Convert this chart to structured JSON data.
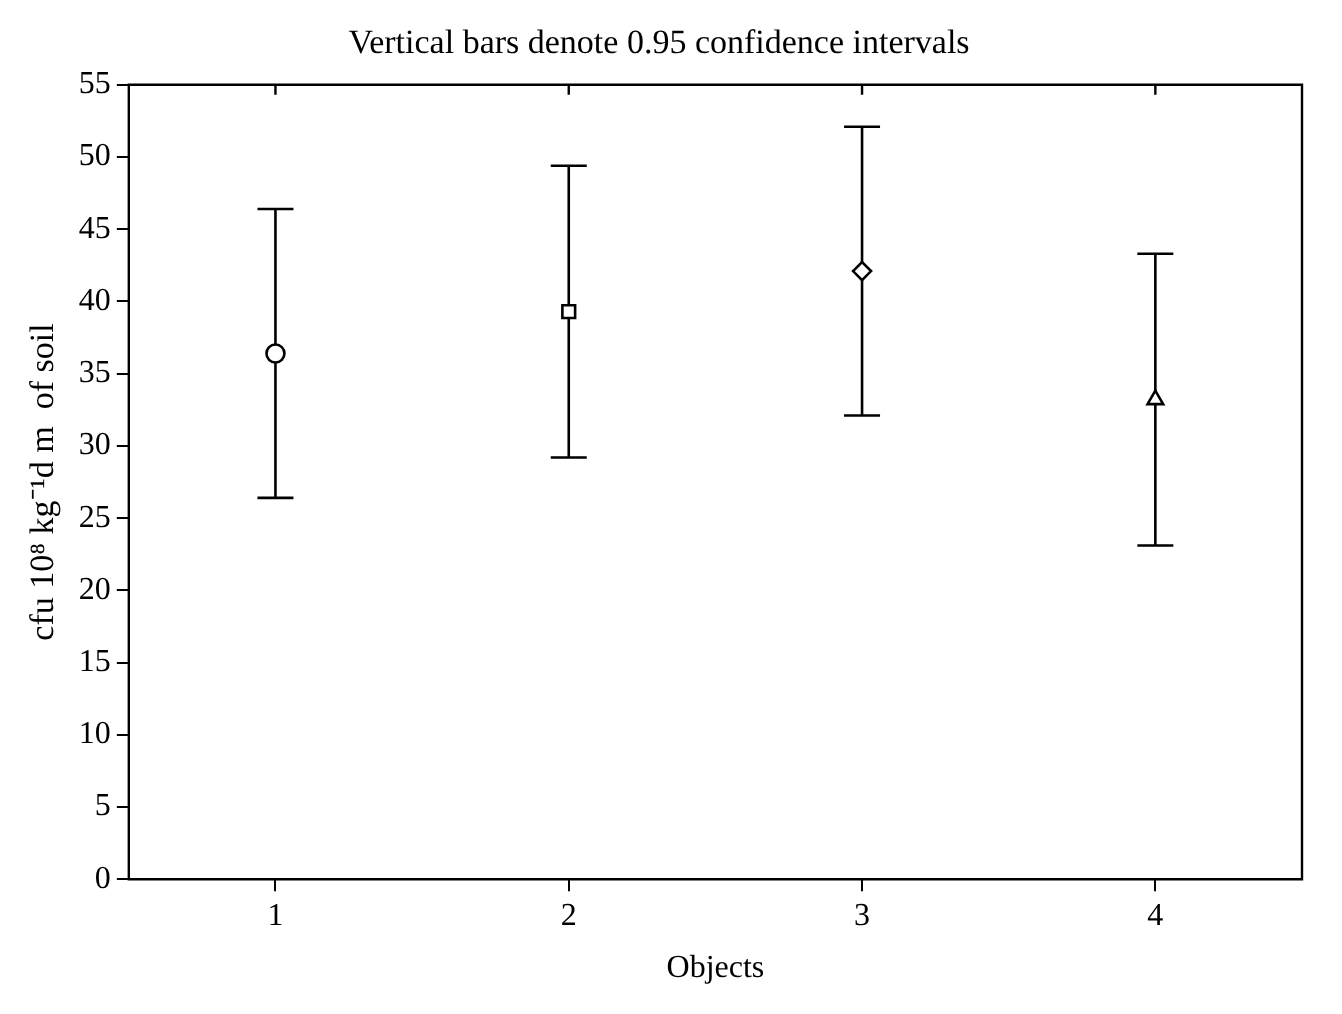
{
  "chart_data": {
    "type": "scatter",
    "title": "Vertical bars denote 0.95 confidence intervals",
    "xlabel": "Objects",
    "ylabel": "cfu 10⁸ kg⁻¹d m  of soil",
    "categories": [
      "1",
      "2",
      "3",
      "4"
    ],
    "series": [
      {
        "color": "#000000",
        "marker": "circle",
        "values": [
          36.4,
          null,
          null,
          null
        ],
        "errors": [
          10,
          null,
          null,
          null
        ]
      },
      {
        "color": "#000000",
        "marker": "square",
        "values": [
          null,
          39.3,
          null,
          null
        ],
        "errors": [
          null,
          10.1,
          null,
          null
        ]
      },
      {
        "color": "#000000",
        "marker": "diamond",
        "values": [
          null,
          null,
          42.1,
          null
        ],
        "errors": [
          null,
          null,
          10,
          null
        ]
      },
      {
        "color": "#000000",
        "marker": "triangle",
        "values": [
          null,
          null,
          null,
          33.2
        ],
        "errors": [
          null,
          null,
          null,
          10.1
        ]
      }
    ],
    "ylim": [
      0,
      55
    ],
    "yticks": [
      0,
      5,
      10,
      15,
      20,
      25,
      30,
      35,
      40,
      45,
      50,
      55
    ]
  }
}
